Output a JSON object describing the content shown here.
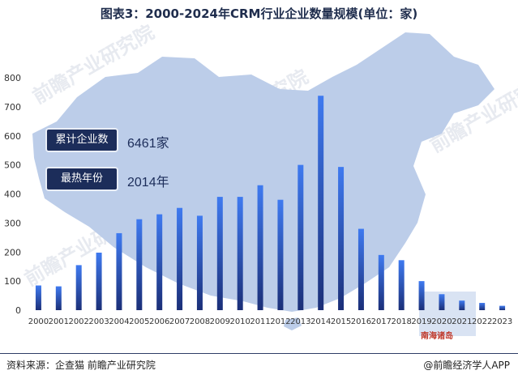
{
  "header": {
    "title": "图表3：2000-2024年CRM行业企业数量规模(单位：家)"
  },
  "callouts": [
    {
      "label": "累计企业数",
      "value": "6461家"
    },
    {
      "label": "最热年份",
      "value": "2014年"
    }
  ],
  "map": {
    "label": "南海诸岛"
  },
  "footer": {
    "source": "资料来源：企查猫 前瞻产业研究院",
    "brand": "@前瞻经济学人APP"
  },
  "watermark": {
    "text": "前瞻产业研究院"
  },
  "colors": {
    "bar_top": "#3a6ee8",
    "bar_bottom": "#1b2f78",
    "map": "#b9cbe9",
    "navy": "#1c2d5a"
  },
  "chart_data": {
    "type": "bar",
    "title": "图表3：2000-2024年CRM行业企业数量规模(单位：家)",
    "xlabel": "",
    "ylabel": "",
    "ylim": [
      0,
      800
    ],
    "yticks": [
      0,
      100,
      200,
      300,
      400,
      500,
      600,
      700,
      800
    ],
    "grid": false,
    "categories": [
      "2000",
      "2001",
      "2002",
      "2003",
      "2004",
      "2005",
      "2006",
      "2007",
      "2008",
      "2009",
      "2010",
      "2011",
      "2012",
      "2013",
      "2014",
      "2015",
      "2016",
      "2017",
      "2018",
      "2019",
      "2020",
      "2021",
      "2022",
      "2023"
    ],
    "values": [
      85,
      82,
      155,
      198,
      265,
      313,
      330,
      352,
      325,
      390,
      390,
      430,
      380,
      500,
      738,
      493,
      280,
      190,
      172,
      100,
      55,
      33,
      25,
      15
    ]
  }
}
